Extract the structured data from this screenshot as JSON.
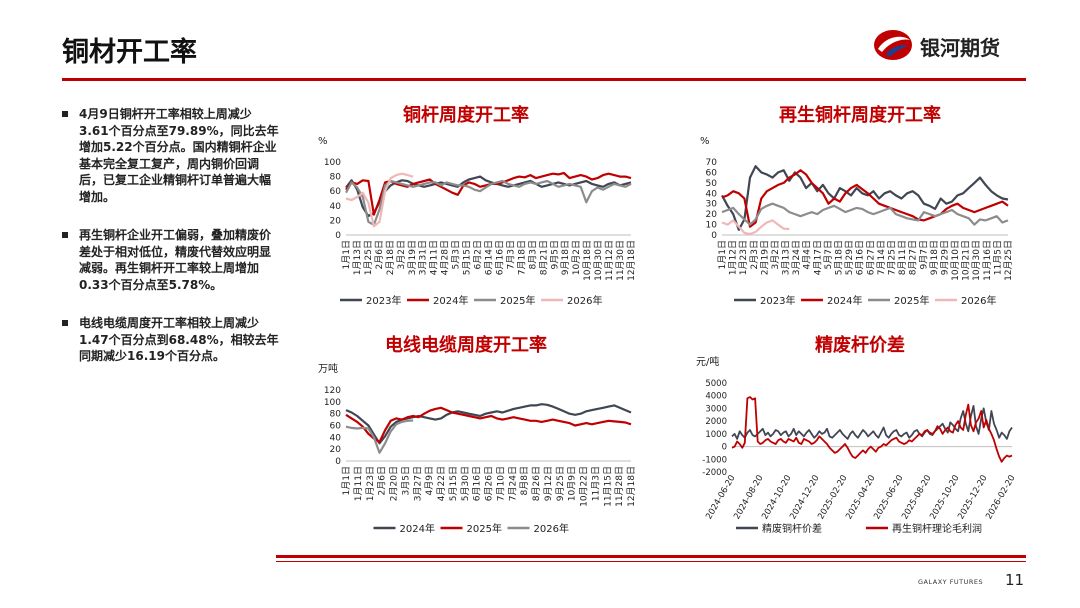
{
  "page": {
    "title": "铜材开工率",
    "brand_name": "银河期货",
    "footer_brand": "GALAXY FUTURES",
    "page_number": "11",
    "accent_color": "#c00000",
    "brand_logo_icon": "galaxy-swoosh-logo"
  },
  "bullets": [
    "4月9日铜杆开工率相较上周减少3.61个百分点至79.89%，同比去年增加5.22个百分点。国内精铜杆企业基本完全复工复产，周内铜价回调后，已复工企业精铜杆订单普遍大幅增加。",
    "再生铜杆企业开工偏弱，叠加精废价差处于相对低位，精废代替效应明显减弱。再生铜杆开工率较上周增加0.33个百分点至5.78%。",
    "电线电缆周度开工率相较上周减少1.47个百分点到68.48%，相较去年同期减少16.19个百分点。"
  ],
  "chart_data": [
    {
      "type": "line",
      "title": "铜杆周度开工率",
      "unit": "%",
      "ylim": [
        0,
        100
      ],
      "yticks": [
        0,
        20,
        40,
        60,
        80,
        100
      ],
      "xtick_labels": [
        "1月1日",
        "1月13日",
        "1月25日",
        "2月6日",
        "2月18日",
        "3月2日",
        "3月19日",
        "3月31日",
        "4月11日",
        "4月28日",
        "5月3日",
        "5月15日",
        "6月2日",
        "6月14日",
        "6月16日",
        "7月3日",
        "7月18日",
        "8月3日",
        "8月21日",
        "9月5日",
        "9月18日",
        "10月2日",
        "10月18日",
        "10月30日",
        "11月12日",
        "11月30日",
        "12月18日"
      ],
      "n_points": 52,
      "legend": [
        "2023年",
        "2024年",
        "2025年",
        "2026年"
      ],
      "series": [
        {
          "name": "2023年",
          "color": "#404654",
          "values": [
            65,
            75,
            62,
            38,
            26,
            30,
            45,
            60,
            68,
            72,
            75,
            74,
            70,
            68,
            66,
            68,
            70,
            72,
            70,
            68,
            66,
            72,
            76,
            78,
            80,
            75,
            72,
            70,
            68,
            66,
            68,
            70,
            72,
            74,
            70,
            66,
            68,
            70,
            72,
            70,
            68,
            70,
            72,
            74,
            70,
            68,
            66,
            70,
            72,
            68,
            70,
            72
          ]
        },
        {
          "name": "2024年",
          "color": "#c00000",
          "values": [
            62,
            72,
            70,
            75,
            74,
            28,
            48,
            72,
            74,
            70,
            68,
            66,
            70,
            72,
            74,
            76,
            70,
            66,
            62,
            58,
            55,
            68,
            72,
            70,
            66,
            68,
            70,
            70,
            72,
            75,
            78,
            80,
            79,
            82,
            78,
            80,
            82,
            84,
            83,
            85,
            78,
            80,
            82,
            80,
            76,
            78,
            82,
            84,
            82,
            80,
            80,
            78
          ]
        },
        {
          "name": "2025年",
          "color": "#8c8c8c",
          "values": [
            58,
            72,
            65,
            52,
            18,
            14,
            35,
            68,
            74,
            72,
            70,
            68,
            66,
            68,
            70,
            72,
            72,
            68,
            72,
            70,
            68,
            68,
            66,
            62,
            60,
            65,
            70,
            72,
            74,
            70,
            68,
            66,
            70,
            72,
            70,
            72,
            74,
            70,
            66,
            68,
            70,
            68,
            66,
            45,
            60,
            65,
            62,
            66,
            70,
            68,
            66,
            70
          ]
        },
        {
          "name": "2026年",
          "color": "#f0b7b7",
          "values": [
            50,
            48,
            52,
            58,
            44,
            12,
            18,
            60,
            78,
            82,
            84,
            82,
            79.89
          ]
        }
      ]
    },
    {
      "type": "line",
      "title": "再生铜杆周度开工率",
      "unit": "%",
      "ylim": [
        0,
        70
      ],
      "yticks": [
        0,
        10,
        20,
        30,
        40,
        50,
        60,
        70
      ],
      "xtick_labels": [
        "1月1日",
        "1月12日",
        "1月23日",
        "2月3日",
        "2月19日",
        "3月2日",
        "3月13日",
        "3月24日",
        "4月4日",
        "4月17日",
        "5月7日",
        "5月18日",
        "5月29日",
        "6月16日",
        "6月27日",
        "7月14日",
        "7月25日",
        "8月11日",
        "8月27日",
        "9月7日",
        "9月18日",
        "9月29日",
        "10月10日",
        "10月21日",
        "10月30日",
        "11月16日",
        "11月5日",
        "12月25日"
      ],
      "n_points": 52,
      "legend": [
        "2023年",
        "2024年",
        "2025年",
        "2026年"
      ],
      "series": [
        {
          "name": "2023年",
          "color": "#404654",
          "values": [
            38,
            28,
            20,
            5,
            15,
            55,
            66,
            60,
            58,
            55,
            60,
            62,
            52,
            60,
            55,
            45,
            50,
            42,
            48,
            40,
            35,
            45,
            42,
            38,
            45,
            40,
            38,
            42,
            35,
            40,
            42,
            38,
            35,
            40,
            42,
            38,
            30,
            28,
            25,
            35,
            30,
            32,
            38,
            40,
            45,
            50,
            55,
            48,
            42,
            38,
            35,
            34
          ]
        },
        {
          "name": "2024年",
          "color": "#c00000",
          "values": [
            36,
            38,
            42,
            40,
            35,
            8,
            12,
            35,
            42,
            45,
            48,
            50,
            55,
            58,
            62,
            58,
            50,
            45,
            40,
            30,
            35,
            32,
            40,
            45,
            48,
            44,
            40,
            35,
            30,
            28,
            26,
            24,
            22,
            20,
            18,
            15,
            14,
            16,
            18,
            20,
            25,
            28,
            30,
            26,
            24,
            22,
            24,
            26,
            28,
            30,
            32,
            28
          ]
        },
        {
          "name": "2025年",
          "color": "#8c8c8c",
          "values": [
            22,
            24,
            26,
            20,
            15,
            10,
            15,
            25,
            28,
            30,
            28,
            26,
            22,
            20,
            18,
            20,
            22,
            20,
            24,
            26,
            28,
            25,
            22,
            24,
            26,
            25,
            22,
            20,
            22,
            24,
            26,
            20,
            18,
            16,
            15,
            14,
            22,
            20,
            18,
            20,
            22,
            24,
            20,
            18,
            16,
            10,
            15,
            14,
            16,
            18,
            12,
            14
          ]
        },
        {
          "name": "2026年",
          "color": "#f0b7b7",
          "values": [
            12,
            10,
            14,
            8,
            2,
            1,
            3,
            8,
            12,
            14,
            10,
            6,
            5.78
          ]
        }
      ]
    },
    {
      "type": "line",
      "title": "电线电缆周度开工率",
      "unit": "万吨",
      "ylim": [
        0,
        120
      ],
      "yticks": [
        0,
        20,
        40,
        60,
        80,
        100,
        120
      ],
      "xtick_labels": [
        "1月1日",
        "1月11日",
        "1月23日",
        "2月6日",
        "2月20日",
        "3月5日",
        "3月27日",
        "4月9日",
        "4月22日",
        "5月15日",
        "5月30日",
        "6月16日",
        "6月26日",
        "7月10日",
        "7月24日",
        "8月8日",
        "8月26日",
        "9月12日",
        "9月25日",
        "10月9日",
        "10月22日",
        "11月3日",
        "11月15日",
        "11月28日",
        "12月18日"
      ],
      "n_points": 52,
      "legend": [
        "2024年",
        "2025年",
        "2026年"
      ],
      "series": [
        {
          "name": "2024年",
          "color": "#404654",
          "values": [
            86,
            82,
            76,
            68,
            60,
            45,
            30,
            42,
            58,
            66,
            70,
            72,
            74,
            76,
            74,
            72,
            70,
            72,
            78,
            82,
            84,
            82,
            80,
            78,
            76,
            80,
            82,
            84,
            82,
            85,
            88,
            90,
            92,
            94,
            94,
            96,
            95,
            92,
            88,
            84,
            80,
            78,
            80,
            84,
            86,
            88,
            90,
            92,
            94,
            90,
            86,
            82
          ]
        },
        {
          "name": "2025年",
          "color": "#c00000",
          "values": [
            78,
            72,
            66,
            58,
            46,
            38,
            32,
            52,
            68,
            72,
            70,
            74,
            76,
            74,
            80,
            85,
            88,
            90,
            86,
            82,
            80,
            78,
            76,
            74,
            72,
            74,
            76,
            72,
            70,
            72,
            74,
            72,
            70,
            68,
            68,
            66,
            68,
            70,
            68,
            66,
            64,
            60,
            62,
            64,
            62,
            64,
            66,
            68,
            67,
            66,
            65,
            62
          ]
        },
        {
          "name": "2026年",
          "color": "#8c8c8c",
          "values": [
            58,
            56,
            55,
            56,
            55,
            40,
            14,
            30,
            50,
            62,
            66,
            68,
            68.48
          ]
        }
      ]
    },
    {
      "type": "line",
      "title": "精废杆价差",
      "unit": "元/吨",
      "ylim": [
        -2000,
        5000
      ],
      "yticks": [
        -2000,
        -1000,
        0,
        1000,
        2000,
        3000,
        4000,
        5000
      ],
      "xtick_labels": [
        "2024-06-20",
        "2024-08-20",
        "2024-10-20",
        "2024-12-20",
        "2025-02-20",
        "2025-04-20",
        "2025-06-20",
        "2025-08-20",
        "2025-10-20",
        "2025-12-20",
        "2026-02-20"
      ],
      "n_points": 110,
      "legend": [
        "精废铜杆价差",
        "再生铜杆理论毛利润"
      ],
      "series": [
        {
          "name": "精废铜杆价差",
          "color": "#404654",
          "values": [
            800,
            1000,
            600,
            1200,
            900,
            700,
            1100,
            1300,
            900,
            800,
            1000,
            1200,
            1400,
            900,
            1100,
            800,
            1000,
            1300,
            1200,
            900,
            1100,
            1200,
            800,
            1000,
            1400,
            900,
            1200,
            1000,
            800,
            1100,
            1300,
            1000,
            700,
            900,
            1200,
            1000,
            1100,
            1400,
            800,
            700,
            900,
            1100,
            1300,
            1000,
            800,
            600,
            1000,
            1200,
            900,
            700,
            1000,
            1300,
            1100,
            800,
            1000,
            1200,
            900,
            700,
            1100,
            1500,
            900,
            700,
            1000,
            1200,
            1300,
            900,
            800,
            1000,
            1100,
            700,
            900,
            1200,
            1300,
            1000,
            800,
            1100,
            1300,
            1000,
            900,
            1200,
            1400,
            1600,
            1800,
            1400,
            1100,
            1900,
            1700,
            1400,
            1200,
            2200,
            2800,
            1800,
            1200,
            2400,
            3200,
            1600,
            1000,
            2200,
            3000,
            1900,
            1300,
            2800,
            1800,
            1300,
            700,
            1100,
            900,
            600,
            1200,
            1500
          ]
        },
        {
          "name": "再生铜杆理论毛利润",
          "color": "#c00000",
          "values": [
            -100,
            0,
            400,
            200,
            -100,
            300,
            3800,
            3900,
            3700,
            3800,
            400,
            200,
            300,
            500,
            600,
            400,
            300,
            200,
            500,
            600,
            400,
            300,
            600,
            500,
            400,
            700,
            300,
            200,
            600,
            500,
            400,
            200,
            300,
            500,
            800,
            600,
            400,
            200,
            -100,
            -300,
            -500,
            -400,
            -200,
            0,
            200,
            -100,
            -500,
            -800,
            -900,
            -700,
            -500,
            -300,
            -500,
            -200,
            0,
            -200,
            -400,
            -100,
            0,
            200,
            100,
            300,
            500,
            600,
            700,
            400,
            300,
            200,
            300,
            500,
            400,
            600,
            800,
            1000,
            900,
            1200,
            1300,
            1100,
            1000,
            1200,
            1600,
            1400,
            1000,
            1300,
            1500,
            1200,
            1100,
            1700,
            2000,
            1500,
            1300,
            2500,
            3300,
            1700,
            1200,
            1900,
            2200,
            2800,
            1500,
            2100,
            1400,
            1000,
            500,
            -200,
            -800,
            -1200,
            -900,
            -700,
            -800,
            -700
          ]
        }
      ]
    }
  ]
}
